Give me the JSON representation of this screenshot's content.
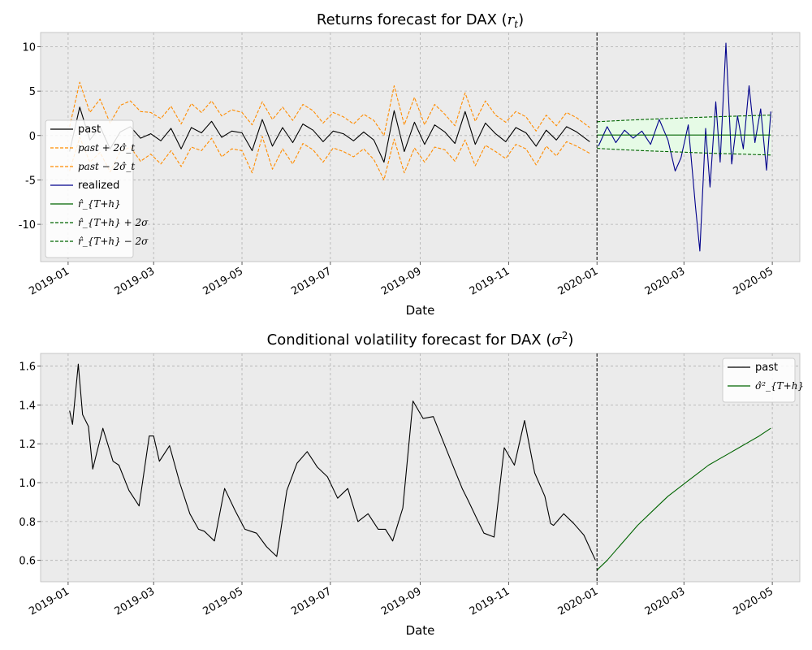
{
  "colors": {
    "panel_bg": "#ebebeb",
    "grid": "#b0b0b0",
    "past": "#000000",
    "band": "#ff8c00",
    "realized": "#00008b",
    "forecast": "#006400",
    "fill": "#e6fbe6",
    "cutoff": "#000000"
  },
  "chart_data": [
    {
      "type": "line",
      "title": "Returns forecast for DAX (r_t)",
      "xlabel": "Date",
      "ylabel": "",
      "xlim": [
        "2018-12-13",
        "2020-05-20"
      ],
      "ylim": [
        -14.2,
        11.6
      ],
      "grid": true,
      "legend_position": "center-left",
      "cutoff_date": "2020-01-01",
      "x_ticks": [
        "2019-01",
        "2019-03",
        "2019-05",
        "2019-07",
        "2019-09",
        "2019-11",
        "2020-01",
        "2020-03",
        "2020-05"
      ],
      "y_ticks": [
        -10,
        -5,
        0,
        5,
        10
      ],
      "legend": [
        {
          "label": "past",
          "style": "solid",
          "color": "#000000",
          "math": false
        },
        {
          "label": "past + 2σ̂_t",
          "style": "dashed",
          "color": "#ff8c00",
          "math": true
        },
        {
          "label": "past − 2σ̂_t",
          "style": "dashed",
          "color": "#ff8c00",
          "math": true
        },
        {
          "label": "realized",
          "style": "solid",
          "color": "#00008b",
          "math": false
        },
        {
          "label": "r̂_{T+h}",
          "style": "solid",
          "color": "#006400",
          "math": true
        },
        {
          "label": "r̂_{T+h} + 2σ",
          "style": "dashed",
          "color": "#006400",
          "math": true
        },
        {
          "label": "r̂_{T+h} − 2σ",
          "style": "dashed",
          "color": "#006400",
          "math": true
        }
      ],
      "series": [
        {
          "name": "past",
          "x": [
            "2019-01-02",
            "2019-01-09",
            "2019-01-16",
            "2019-01-23",
            "2019-01-30",
            "2019-02-06",
            "2019-02-13",
            "2019-02-20",
            "2019-02-27",
            "2019-03-06",
            "2019-03-13",
            "2019-03-20",
            "2019-03-27",
            "2019-04-03",
            "2019-04-10",
            "2019-04-17",
            "2019-04-24",
            "2019-05-01",
            "2019-05-08",
            "2019-05-15",
            "2019-05-22",
            "2019-05-29",
            "2019-06-05",
            "2019-06-12",
            "2019-06-19",
            "2019-06-26",
            "2019-07-03",
            "2019-07-10",
            "2019-07-17",
            "2019-07-24",
            "2019-07-31",
            "2019-08-07",
            "2019-08-14",
            "2019-08-21",
            "2019-08-28",
            "2019-09-04",
            "2019-09-11",
            "2019-09-18",
            "2019-09-25",
            "2019-10-02",
            "2019-10-09",
            "2019-10-16",
            "2019-10-23",
            "2019-10-30",
            "2019-11-06",
            "2019-11-13",
            "2019-11-20",
            "2019-11-27",
            "2019-12-04",
            "2019-12-11",
            "2019-12-18",
            "2019-12-27"
          ],
          "values": [
            -1.8,
            3.2,
            -0.5,
            1.0,
            -1.5,
            0.4,
            1.0,
            -0.3,
            0.2,
            -0.6,
            0.8,
            -1.5,
            0.9,
            0.3,
            1.6,
            -0.2,
            0.5,
            0.3,
            -1.7,
            1.8,
            -1.2,
            0.9,
            -0.8,
            1.3,
            0.6,
            -0.7,
            0.5,
            0.2,
            -0.6,
            0.4,
            -0.5,
            -3.0,
            2.8,
            -1.8,
            1.5,
            -1.0,
            1.2,
            0.4,
            -0.9,
            2.7,
            -1.0,
            1.4,
            0.2,
            -0.7,
            0.9,
            0.3,
            -1.2,
            0.6,
            -0.5,
            1.0,
            0.4,
            -0.7
          ]
        },
        {
          "name": "past + 2σ̂_t",
          "x": [
            "2019-01-02",
            "2019-01-09",
            "2019-01-16",
            "2019-01-23",
            "2019-01-30",
            "2019-02-06",
            "2019-02-13",
            "2019-02-20",
            "2019-02-27",
            "2019-03-06",
            "2019-03-13",
            "2019-03-20",
            "2019-03-27",
            "2019-04-03",
            "2019-04-10",
            "2019-04-17",
            "2019-04-24",
            "2019-05-01",
            "2019-05-08",
            "2019-05-15",
            "2019-05-22",
            "2019-05-29",
            "2019-06-05",
            "2019-06-12",
            "2019-06-19",
            "2019-06-26",
            "2019-07-03",
            "2019-07-10",
            "2019-07-17",
            "2019-07-24",
            "2019-07-31",
            "2019-08-07",
            "2019-08-14",
            "2019-08-21",
            "2019-08-28",
            "2019-09-04",
            "2019-09-11",
            "2019-09-18",
            "2019-09-25",
            "2019-10-02",
            "2019-10-09",
            "2019-10-16",
            "2019-10-23",
            "2019-10-30",
            "2019-11-06",
            "2019-11-13",
            "2019-11-20",
            "2019-11-27",
            "2019-12-04",
            "2019-12-11",
            "2019-12-18",
            "2019-12-27"
          ],
          "values": [
            1.0,
            6.0,
            2.6,
            4.1,
            1.4,
            3.4,
            3.9,
            2.7,
            2.6,
            1.9,
            3.3,
            1.3,
            3.6,
            2.6,
            3.9,
            2.2,
            2.9,
            2.6,
            1.2,
            3.8,
            1.8,
            3.2,
            1.7,
            3.5,
            2.8,
            1.4,
            2.6,
            2.1,
            1.3,
            2.4,
            1.7,
            0.0,
            5.6,
            1.2,
            4.3,
            1.2,
            3.5,
            2.4,
            1.1,
            4.8,
            1.6,
            3.9,
            2.3,
            1.5,
            2.7,
            2.1,
            0.5,
            2.3,
            1.1,
            2.6,
            2.0,
            0.9
          ]
        },
        {
          "name": "past − 2σ̂_t",
          "x": [
            "2019-01-02",
            "2019-01-09",
            "2019-01-16",
            "2019-01-23",
            "2019-01-30",
            "2019-02-06",
            "2019-02-13",
            "2019-02-20",
            "2019-02-27",
            "2019-03-06",
            "2019-03-13",
            "2019-03-20",
            "2019-03-27",
            "2019-04-03",
            "2019-04-10",
            "2019-04-17",
            "2019-04-24",
            "2019-05-01",
            "2019-05-08",
            "2019-05-15",
            "2019-05-22",
            "2019-05-29",
            "2019-06-05",
            "2019-06-12",
            "2019-06-19",
            "2019-06-26",
            "2019-07-03",
            "2019-07-10",
            "2019-07-17",
            "2019-07-24",
            "2019-07-31",
            "2019-08-07",
            "2019-08-14",
            "2019-08-21",
            "2019-08-28",
            "2019-09-04",
            "2019-09-11",
            "2019-09-18",
            "2019-09-25",
            "2019-10-02",
            "2019-10-09",
            "2019-10-16",
            "2019-10-23",
            "2019-10-30",
            "2019-11-06",
            "2019-11-13",
            "2019-11-20",
            "2019-11-27",
            "2019-12-04",
            "2019-12-11",
            "2019-12-18",
            "2019-12-27"
          ],
          "values": [
            -4.0,
            -0.2,
            -3.0,
            -1.9,
            -4.1,
            -1.8,
            -1.3,
            -2.9,
            -2.1,
            -3.2,
            -1.7,
            -3.5,
            -1.3,
            -1.7,
            -0.3,
            -2.4,
            -1.5,
            -1.7,
            -4.2,
            -0.1,
            -3.8,
            -1.5,
            -3.2,
            -0.9,
            -1.6,
            -3.0,
            -1.4,
            -1.8,
            -2.4,
            -1.5,
            -2.7,
            -5.0,
            -0.4,
            -4.2,
            -1.4,
            -3.0,
            -1.3,
            -1.6,
            -2.9,
            -0.5,
            -3.4,
            -1.1,
            -1.8,
            -2.6,
            -1.0,
            -1.5,
            -3.3,
            -1.2,
            -2.3,
            -0.7,
            -1.2,
            -2.0
          ]
        },
        {
          "name": "realized",
          "x": [
            "2020-01-02",
            "2020-01-08",
            "2020-01-14",
            "2020-01-20",
            "2020-01-26",
            "2020-02-01",
            "2020-02-07",
            "2020-02-13",
            "2020-02-19",
            "2020-02-24",
            "2020-02-28",
            "2020-03-04",
            "2020-03-09",
            "2020-03-12",
            "2020-03-16",
            "2020-03-19",
            "2020-03-23",
            "2020-03-26",
            "2020-03-30",
            "2020-04-03",
            "2020-04-07",
            "2020-04-11",
            "2020-04-15",
            "2020-04-19",
            "2020-04-23",
            "2020-04-27",
            "2020-04-30"
          ],
          "values": [
            -1.2,
            1.0,
            -0.8,
            0.6,
            -0.3,
            0.5,
            -1.0,
            1.8,
            -0.5,
            -4.0,
            -2.5,
            1.2,
            -8.0,
            -13.0,
            0.8,
            -5.8,
            3.8,
            -3.0,
            10.4,
            -3.2,
            2.2,
            -1.5,
            5.6,
            -0.8,
            3.0,
            -3.9,
            2.7
          ]
        },
        {
          "name": "r̂_{T+h}",
          "x": [
            "2020-01-01",
            "2020-04-30"
          ],
          "values": [
            0.05,
            0.05
          ]
        },
        {
          "name": "r̂_{T+h} + 2σ",
          "x": [
            "2020-01-01",
            "2020-01-21",
            "2020-02-10",
            "2020-03-01",
            "2020-03-21",
            "2020-04-10",
            "2020-04-30"
          ],
          "values": [
            1.55,
            1.72,
            1.86,
            1.98,
            2.1,
            2.2,
            2.3
          ]
        },
        {
          "name": "r̂_{T+h} − 2σ",
          "x": [
            "2020-01-01",
            "2020-01-21",
            "2020-02-10",
            "2020-03-01",
            "2020-03-21",
            "2020-04-10",
            "2020-04-30"
          ],
          "values": [
            -1.45,
            -1.62,
            -1.76,
            -1.88,
            -2.0,
            -2.1,
            -2.2
          ]
        }
      ]
    },
    {
      "type": "line",
      "title": "Conditional volatility forecast for DAX (σ²)",
      "xlabel": "Date",
      "ylabel": "",
      "xlim": [
        "2018-12-13",
        "2020-05-20"
      ],
      "ylim": [
        0.49,
        1.665
      ],
      "grid": true,
      "legend_position": "top-right",
      "cutoff_date": "2020-01-01",
      "x_ticks": [
        "2019-01",
        "2019-03",
        "2019-05",
        "2019-07",
        "2019-09",
        "2019-11",
        "2020-01",
        "2020-03",
        "2020-05"
      ],
      "y_ticks": [
        0.6,
        0.8,
        1.0,
        1.2,
        1.4,
        1.6
      ],
      "legend": [
        {
          "label": "past",
          "style": "solid",
          "color": "#000000",
          "math": false
        },
        {
          "label": "σ̂²_{T+h}",
          "style": "solid",
          "color": "#006400",
          "math": true
        }
      ],
      "series": [
        {
          "name": "past",
          "x": [
            "2019-01-02",
            "2019-01-04",
            "2019-01-08",
            "2019-01-11",
            "2019-01-15",
            "2019-01-18",
            "2019-01-25",
            "2019-02-01",
            "2019-02-05",
            "2019-02-12",
            "2019-02-19",
            "2019-02-26",
            "2019-03-01",
            "2019-03-05",
            "2019-03-12",
            "2019-03-19",
            "2019-03-26",
            "2019-04-01",
            "2019-04-05",
            "2019-04-12",
            "2019-04-19",
            "2019-04-26",
            "2019-05-03",
            "2019-05-07",
            "2019-05-11",
            "2019-05-18",
            "2019-05-25",
            "2019-06-01",
            "2019-06-08",
            "2019-06-15",
            "2019-06-22",
            "2019-06-29",
            "2019-07-06",
            "2019-07-13",
            "2019-07-20",
            "2019-07-27",
            "2019-08-03",
            "2019-08-08",
            "2019-08-13",
            "2019-08-20",
            "2019-08-27",
            "2019-09-03",
            "2019-09-10",
            "2019-09-17",
            "2019-09-24",
            "2019-09-30",
            "2019-10-04",
            "2019-10-11",
            "2019-10-15",
            "2019-10-22",
            "2019-10-29",
            "2019-11-05",
            "2019-11-12",
            "2019-11-19",
            "2019-11-26",
            "2019-11-30",
            "2019-12-02",
            "2019-12-09",
            "2019-12-16",
            "2019-12-23",
            "2019-12-31"
          ],
          "values": [
            1.37,
            1.3,
            1.61,
            1.35,
            1.29,
            1.07,
            1.28,
            1.11,
            1.09,
            0.96,
            0.88,
            1.24,
            1.24,
            1.11,
            1.19,
            1.0,
            0.84,
            0.76,
            0.75,
            0.7,
            0.97,
            0.86,
            0.76,
            0.75,
            0.74,
            0.67,
            0.62,
            0.96,
            1.1,
            1.16,
            1.08,
            1.03,
            0.92,
            0.97,
            0.8,
            0.84,
            0.76,
            0.76,
            0.7,
            0.87,
            1.42,
            1.33,
            1.34,
            1.21,
            1.08,
            0.97,
            0.91,
            0.8,
            0.74,
            0.72,
            1.18,
            1.09,
            1.32,
            1.05,
            0.93,
            0.79,
            0.78,
            0.84,
            0.79,
            0.73,
            0.6
          ]
        },
        {
          "name": "σ̂²_{T+h}",
          "x": [
            "2020-01-01",
            "2020-01-08",
            "2020-01-15",
            "2020-01-22",
            "2020-01-29",
            "2020-02-05",
            "2020-02-12",
            "2020-02-19",
            "2020-02-26",
            "2020-03-04",
            "2020-03-11",
            "2020-03-18",
            "2020-03-25",
            "2020-04-01",
            "2020-04-08",
            "2020-04-15",
            "2020-04-22",
            "2020-04-30"
          ],
          "values": [
            0.55,
            0.6,
            0.66,
            0.72,
            0.78,
            0.83,
            0.88,
            0.93,
            0.97,
            1.01,
            1.05,
            1.09,
            1.12,
            1.15,
            1.18,
            1.21,
            1.24,
            1.28
          ]
        }
      ]
    }
  ]
}
